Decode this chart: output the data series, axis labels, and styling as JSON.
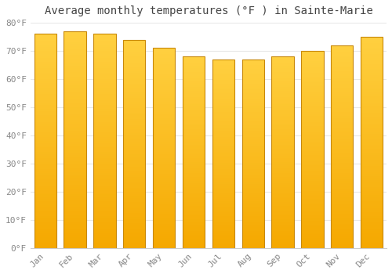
{
  "months": [
    "Jan",
    "Feb",
    "Mar",
    "Apr",
    "May",
    "Jun",
    "Jul",
    "Aug",
    "Sep",
    "Oct",
    "Nov",
    "Dec"
  ],
  "values": [
    76,
    77,
    76,
    74,
    71,
    68,
    67,
    67,
    68,
    70,
    72,
    75
  ],
  "title": "Average monthly temperatures (°F ) in Sainte-Marie",
  "ylim": [
    0,
    80
  ],
  "yticks": [
    0,
    10,
    20,
    30,
    40,
    50,
    60,
    70,
    80
  ],
  "ytick_labels": [
    "0°F",
    "10°F",
    "20°F",
    "30°F",
    "40°F",
    "50°F",
    "60°F",
    "70°F",
    "80°F"
  ],
  "bar_color_top": "#FFD040",
  "bar_color_bottom": "#F5A800",
  "bar_edge_color": "#C8880A",
  "background_color": "#FFFFFF",
  "grid_color": "#E8E8E8",
  "title_fontsize": 10,
  "tick_fontsize": 8,
  "title_color": "#444444",
  "tick_color": "#888888",
  "bar_width": 0.75
}
